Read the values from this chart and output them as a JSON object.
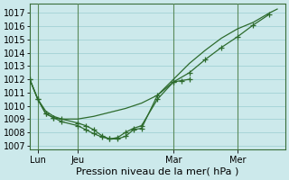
{
  "bg_color": "#cce9eb",
  "grid_color": "#99cdd1",
  "line_color": "#2d6b2d",
  "title": "Pression niveau de la mer( hPa )",
  "ylim": [
    1006.7,
    1017.7
  ],
  "yticks": [
    1007,
    1008,
    1009,
    1010,
    1011,
    1012,
    1013,
    1014,
    1015,
    1016,
    1017
  ],
  "xtick_labels": [
    "Lun",
    "Jeu",
    "Mar",
    "Mer"
  ],
  "xtick_positions": [
    1,
    6,
    18,
    26
  ],
  "vline_x": [
    1,
    6,
    18,
    26
  ],
  "xlim": [
    0,
    32
  ],
  "line1_x": [
    0,
    1,
    2,
    3,
    4,
    6,
    7,
    8,
    9,
    10,
    11,
    12,
    13,
    14,
    16,
    18,
    19,
    20
  ],
  "line1_y": [
    1012,
    1010.5,
    1009.4,
    1009.1,
    1008.8,
    1008.5,
    1008.2,
    1007.9,
    1007.65,
    1007.5,
    1007.6,
    1008.0,
    1008.3,
    1008.5,
    1010.5,
    1011.8,
    1011.9,
    1012.0
  ],
  "line2_x": [
    0,
    1,
    2,
    3,
    4,
    6,
    7,
    8,
    9,
    10,
    11,
    12,
    13,
    14,
    16,
    18,
    20,
    22,
    24,
    26,
    28,
    30
  ],
  "line2_y": [
    1012,
    1010.5,
    1009.4,
    1009.1,
    1009.0,
    1008.7,
    1008.5,
    1008.2,
    1007.75,
    1007.5,
    1007.5,
    1007.7,
    1008.2,
    1008.3,
    1010.8,
    1011.8,
    1012.5,
    1013.5,
    1014.4,
    1015.2,
    1016.1,
    1016.9
  ],
  "line2_marker_x": [
    0,
    1,
    2,
    3,
    4,
    6,
    7,
    8,
    9,
    10,
    11,
    12,
    13,
    14,
    16,
    18,
    20,
    22,
    24,
    26,
    28,
    30
  ],
  "line3_x": [
    0,
    1,
    2,
    3,
    4,
    6,
    8,
    10,
    12,
    14,
    16,
    18,
    20,
    22,
    24,
    26,
    28,
    30,
    31
  ],
  "line3_y": [
    1012,
    1010.5,
    1009.6,
    1009.2,
    1009.0,
    1009.0,
    1009.2,
    1009.5,
    1009.8,
    1010.2,
    1010.8,
    1012.0,
    1013.2,
    1014.2,
    1015.1,
    1015.8,
    1016.3,
    1017.0,
    1017.3
  ],
  "tick_fontsize": 7,
  "xlabel_fontsize": 8
}
